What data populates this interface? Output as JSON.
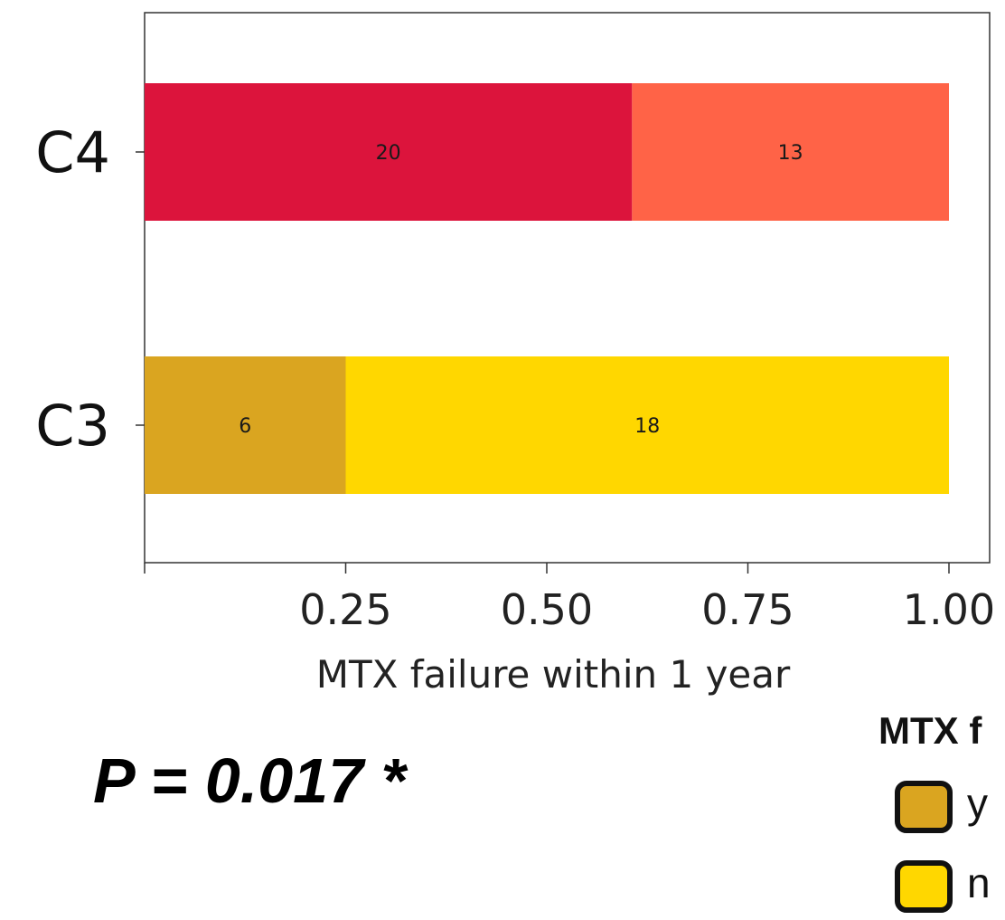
{
  "chart_data": {
    "type": "bar",
    "orientation": "horizontal",
    "stacked": true,
    "normalized": true,
    "categories": [
      "C4",
      "C3"
    ],
    "rows": [
      {
        "category": "C4",
        "segments": [
          {
            "count": "20",
            "value": 0.606,
            "color": "#DC143C"
          },
          {
            "count": "13",
            "value": 0.394,
            "color": "#FF6347"
          }
        ]
      },
      {
        "category": "C3",
        "segments": [
          {
            "count": "6",
            "value": 0.25,
            "color": "#DAA520"
          },
          {
            "count": "18",
            "value": 0.75,
            "color": "#FFD700"
          }
        ]
      }
    ],
    "xlabel": "MTX failure within 1 year",
    "xticks": [
      "0.25",
      "0.50",
      "0.75",
      "1.00"
    ],
    "xtick_values": [
      0.25,
      0.5,
      0.75,
      1.0
    ],
    "xlim": [
      0,
      1
    ],
    "grid": false
  },
  "annotation": "P = 0.017 *",
  "legend": {
    "title": "MTX f",
    "items": [
      {
        "label": "y",
        "color": "#DAA520"
      },
      {
        "label": "n",
        "color": "#FFD700"
      }
    ]
  }
}
